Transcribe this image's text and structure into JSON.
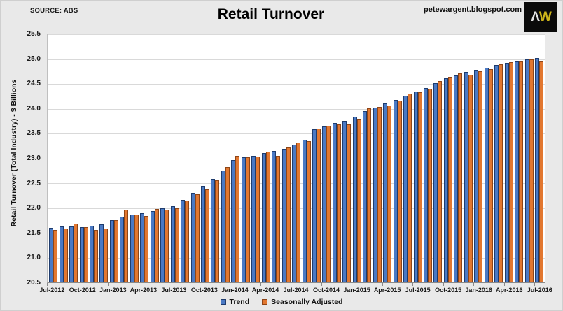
{
  "header": {
    "source_label": "SOURCE: ABS",
    "title": "Retail Turnover",
    "site": "petewargent.blogspot.com",
    "logo": {
      "letter1": "Λ",
      "letter2": "W",
      "bg": "#0a0a0a",
      "letter1_color": "#e2e2e2",
      "letter2_color": "#cdb41a"
    }
  },
  "colors": {
    "background": "#e9e9e9",
    "plot_background": "#ffffff",
    "gridline": "#d9d9d9",
    "trend_fill": "#4a79c4",
    "trend_border": "#1e3c6e",
    "sa_fill": "#e27730",
    "sa_border": "#8f4516"
  },
  "chart_data": {
    "type": "bar",
    "title": "Retail Turnover",
    "xlabel": "",
    "ylabel": "Retail Turnover (Total Industry) - $ Billions",
    "ylim": [
      20.5,
      25.5
    ],
    "ytick_step": 0.5,
    "yticks": [
      "25.5",
      "25.0",
      "24.5",
      "24.0",
      "23.5",
      "23.0",
      "22.5",
      "22.0",
      "21.5",
      "21.0",
      "20.5"
    ],
    "grid": true,
    "legend_position": "bottom",
    "x": [
      "Jul-2012",
      "Aug-2012",
      "Sep-2012",
      "Oct-2012",
      "Nov-2012",
      "Dec-2012",
      "Jan-2013",
      "Feb-2013",
      "Mar-2013",
      "Apr-2013",
      "May-2013",
      "Jun-2013",
      "Jul-2013",
      "Aug-2013",
      "Sep-2013",
      "Oct-2013",
      "Nov-2013",
      "Dec-2013",
      "Jan-2014",
      "Feb-2014",
      "Mar-2014",
      "Apr-2014",
      "May-2014",
      "Jun-2014",
      "Jul-2014",
      "Aug-2014",
      "Sep-2014",
      "Oct-2014",
      "Nov-2014",
      "Dec-2014",
      "Jan-2015",
      "Feb-2015",
      "Mar-2015",
      "Apr-2015",
      "May-2015",
      "Jun-2015",
      "Jul-2015",
      "Aug-2015",
      "Sep-2015",
      "Oct-2015",
      "Nov-2015",
      "Dec-2015",
      "Jan-2016",
      "Feb-2016",
      "Mar-2016",
      "Apr-2016",
      "May-2016",
      "Jun-2016",
      "Jul-2016"
    ],
    "xtick_labels": [
      "Jul-2012",
      "Oct-2012",
      "Jan-2013",
      "Apr-2013",
      "Jul-2013",
      "Oct-2013",
      "Jan-2014",
      "Apr-2014",
      "Jul-2014",
      "Oct-2014",
      "Jan-2015",
      "Apr-2015",
      "Jul-2015",
      "Oct-2015",
      "Jan-2016",
      "Apr-2016",
      "Jul-2016"
    ],
    "xtick_every": 3,
    "series": [
      {
        "name": "Trend",
        "values": [
          21.6,
          21.62,
          21.62,
          21.61,
          21.64,
          21.67,
          21.75,
          21.82,
          21.87,
          21.9,
          21.94,
          21.99,
          22.04,
          22.16,
          22.3,
          22.44,
          22.58,
          22.76,
          22.97,
          23.02,
          23.05,
          23.1,
          23.15,
          23.19,
          23.27,
          23.37,
          23.58,
          23.64,
          23.71,
          23.76,
          23.84,
          23.95,
          24.02,
          24.1,
          24.18,
          24.26,
          24.34,
          24.42,
          24.52,
          24.61,
          24.67,
          24.74,
          24.78,
          24.83,
          24.88,
          24.92,
          24.96,
          24.99,
          25.02
        ]
      },
      {
        "name": "Seasonally Adjusted",
        "values": [
          21.56,
          21.58,
          21.68,
          21.61,
          21.56,
          21.58,
          21.76,
          21.97,
          21.86,
          21.84,
          21.98,
          21.96,
          22.0,
          22.15,
          22.27,
          22.38,
          22.56,
          22.83,
          23.05,
          23.02,
          23.04,
          23.14,
          23.05,
          23.22,
          23.32,
          23.34,
          23.6,
          23.66,
          23.69,
          23.69,
          23.8,
          24.01,
          24.04,
          24.07,
          24.16,
          24.31,
          24.33,
          24.4,
          24.55,
          24.64,
          24.71,
          24.69,
          24.76,
          24.8,
          24.9,
          24.94,
          24.97,
          25.0,
          24.97
        ]
      }
    ]
  }
}
